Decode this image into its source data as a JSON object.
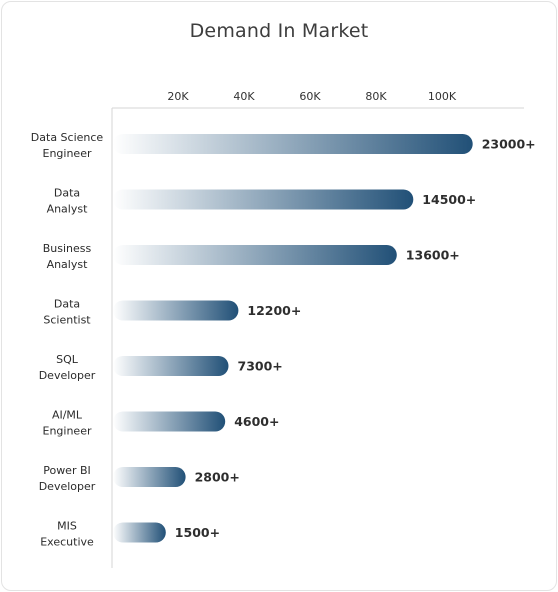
{
  "chart_data": {
    "type": "bar",
    "orientation": "horizontal",
    "title": "Demand In Market",
    "xlabel": "",
    "ylabel": "",
    "x_ticks": [
      "20K",
      "40K",
      "60K",
      "80K",
      "100K"
    ],
    "xlim": [
      0,
      110000
    ],
    "categories": [
      "Data Science Engineer",
      "Data Analyst",
      "Business Analyst",
      "Data Scientist",
      "SQL Developer",
      "AI/ML Engineer",
      "Power BI Developer",
      "MIS Executive"
    ],
    "category_lines": [
      [
        "Data Science",
        "Engineer"
      ],
      [
        "Data",
        "Analyst"
      ],
      [
        "Business",
        "Analyst"
      ],
      [
        "Data",
        "Scientist"
      ],
      [
        "SQL",
        "Developer"
      ],
      [
        "AI/ML",
        "Engineer"
      ],
      [
        "Power BI",
        "Developer"
      ],
      [
        "MIS",
        "Executive"
      ]
    ],
    "bar_lengths_on_axis": [
      109000,
      91000,
      86000,
      38000,
      35000,
      34000,
      22000,
      16000
    ],
    "value_labels": [
      "23000+",
      "14500+",
      "13600+",
      "12200+",
      "7300+",
      "4600+",
      "2800+",
      "1500+"
    ],
    "grid": false,
    "legend": "none",
    "colors": {
      "bar_start": "#ffffff",
      "bar_end": "#215077",
      "axis_line": "#d6d6d6"
    }
  }
}
